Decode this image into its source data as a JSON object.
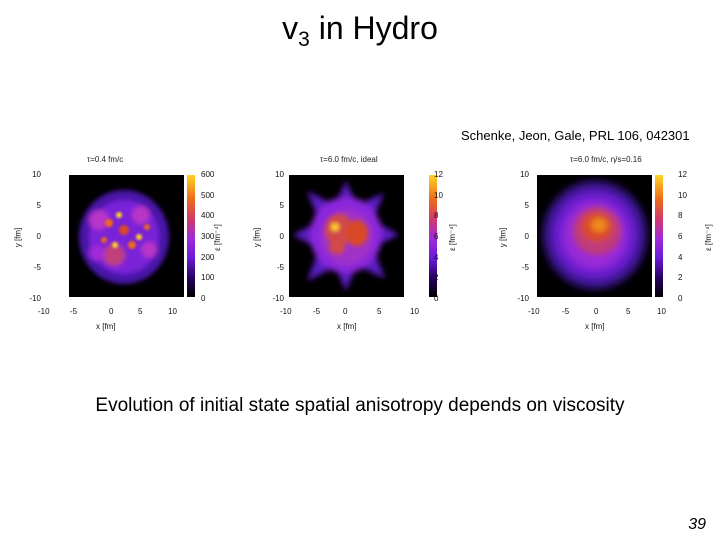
{
  "slide": {
    "title_main": "v",
    "title_sub": "3",
    "title_rest": " in Hydro",
    "citation": "Schenke, Jeon, Gale, PRL 106, 042301",
    "caption": "Evolution of initial state spatial anisotropy depends on viscosity",
    "page_number": "39"
  },
  "panels": [
    {
      "title": "τ=0.4 fm/c",
      "y_ticks": [
        "10",
        "5",
        "0",
        "-5",
        "-10"
      ],
      "x_ticks": [
        "-10",
        "-5",
        "0",
        "5",
        "10"
      ],
      "colorbar_ticks": [
        "600",
        "500",
        "400",
        "300",
        "200",
        "100",
        "0"
      ],
      "xlabel": "x [fm]",
      "ylabel": "y [fm]",
      "colorbar_label": "ε [fm⁻⁴]"
    },
    {
      "title": "τ=6.0 fm/c, ideal",
      "y_ticks": [
        "10",
        "5",
        "0",
        "-5",
        "-10"
      ],
      "x_ticks": [
        "-10",
        "-5",
        "0",
        "5",
        "10"
      ],
      "colorbar_ticks": [
        "12",
        "10",
        "8",
        "6",
        "4",
        "2",
        "0"
      ],
      "xlabel": "x [fm]",
      "ylabel": "y [fm]",
      "colorbar_label": "ε [fm⁻⁴]"
    },
    {
      "title": "τ=6.0 fm/c, η/s=0.16",
      "y_ticks": [
        "10",
        "5",
        "0",
        "-5",
        "-10"
      ],
      "x_ticks": [
        "-10",
        "-5",
        "0",
        "5",
        "10"
      ],
      "colorbar_ticks": [
        "12",
        "10",
        "8",
        "6",
        "4",
        "2",
        "0"
      ],
      "xlabel": "x [fm]",
      "ylabel": "y [fm]",
      "colorbar_label": "ε [fm⁻⁴]"
    }
  ]
}
